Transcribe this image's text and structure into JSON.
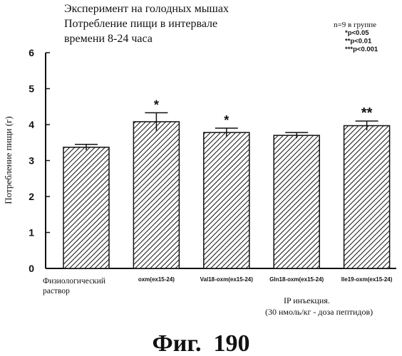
{
  "chart_data": {
    "type": "bar",
    "title_lines": [
      "Эксперимент на голодных мышах",
      "Потребление пищи в интервале",
      "времени 8-24 часа"
    ],
    "notes": [
      "n=9 в группе",
      "*p<0.05",
      "**p<0.01",
      "***p<0.001"
    ],
    "ylabel": "Потребление пищи (г)",
    "ylim": [
      0,
      6
    ],
    "yticks": [
      0,
      1,
      2,
      3,
      4,
      5,
      6
    ],
    "categories": [
      [
        "Физиологический",
        "раствор"
      ],
      [
        "oxm(ex15-24)"
      ],
      [
        "Val18-oxm(ex15-24)"
      ],
      [
        "Gln18-oxm(ex15-24)"
      ],
      [
        "Ile19-oxm(ex15-24)"
      ]
    ],
    "values": [
      3.37,
      4.08,
      3.78,
      3.7,
      3.97
    ],
    "errors": [
      0.08,
      0.25,
      0.12,
      0.08,
      0.13
    ],
    "significance": [
      "",
      "*",
      "*",
      "",
      "**"
    ],
    "xnote_lines": [
      "IP инъекция.",
      "(30 нмоль/кг - доза пептидов)"
    ],
    "grid": false,
    "pattern": "diagonal-hatch"
  },
  "figure_caption": "Фиг.  190"
}
